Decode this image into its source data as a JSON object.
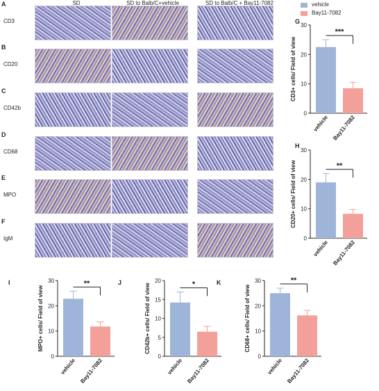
{
  "panel_letters": [
    "A",
    "B",
    "C",
    "D",
    "E",
    "F",
    "G",
    "H",
    "I",
    "J",
    "K"
  ],
  "micrograph": {
    "columns": [
      "SD",
      "SD to Balb/C+vehicle",
      "SD to Balb/C + Bay11-7082"
    ],
    "rows": [
      "CD3",
      "CD20",
      "CD42b",
      "CD68",
      "MPO",
      "IgM"
    ]
  },
  "legend": {
    "items": [
      {
        "label": "vehicle",
        "color": "#9fb4d9"
      },
      {
        "label": "Bay11-7082",
        "color": "#f4a09a"
      }
    ]
  },
  "colors": {
    "vehicle": "#9fb4d9",
    "bay": "#f4a09a",
    "axis": "#222222"
  },
  "chart_data": [
    {
      "panel": "G",
      "type": "bar",
      "categories": [
        "vehicle",
        "Bay11-7082"
      ],
      "values": [
        22.5,
        8.5
      ],
      "errors": [
        2.5,
        2.0
      ],
      "ylabel": "CD3+ cells/ Field of view",
      "ylim": [
        0,
        30
      ],
      "yticks": [
        "0",
        "10",
        "20",
        "30"
      ],
      "significance": "***"
    },
    {
      "panel": "H",
      "type": "bar",
      "categories": [
        "vehicle",
        "Bay11-7082"
      ],
      "values": [
        19.0,
        8.3
      ],
      "errors": [
        3.0,
        1.5
      ],
      "ylabel": "CD20+ cells/ Field of view",
      "ylim": [
        0,
        30
      ],
      "yticks": [
        "0",
        "10",
        "20",
        "30"
      ],
      "significance": "**"
    },
    {
      "panel": "I",
      "type": "bar",
      "categories": [
        "vehicle",
        "Bay11-7082"
      ],
      "values": [
        22.8,
        11.8
      ],
      "errors": [
        3.0,
        1.8
      ],
      "ylabel": "MPO+ cells/ Field of view",
      "ylim": [
        0,
        30
      ],
      "yticks": [
        "0",
        "10",
        "20",
        "30"
      ],
      "significance": "**"
    },
    {
      "panel": "J",
      "type": "bar",
      "categories": [
        "vehicle",
        "Bay11-7082"
      ],
      "values": [
        14.2,
        6.5
      ],
      "errors": [
        2.8,
        1.4
      ],
      "ylabel": "CD42b+ cells/ Field of view",
      "ylim": [
        0,
        20
      ],
      "yticks": [
        "0",
        "5",
        "10",
        "15",
        "20"
      ],
      "significance": "*"
    },
    {
      "panel": "K",
      "type": "bar",
      "categories": [
        "vehicle",
        "Bay11-7082"
      ],
      "values": [
        25.0,
        16.2
      ],
      "errors": [
        2.0,
        2.0
      ],
      "ylabel": "CD68+ cells/ Field of view",
      "ylim": [
        0,
        30
      ],
      "yticks": [
        "0",
        "10",
        "20",
        "30"
      ],
      "significance": "**"
    }
  ]
}
